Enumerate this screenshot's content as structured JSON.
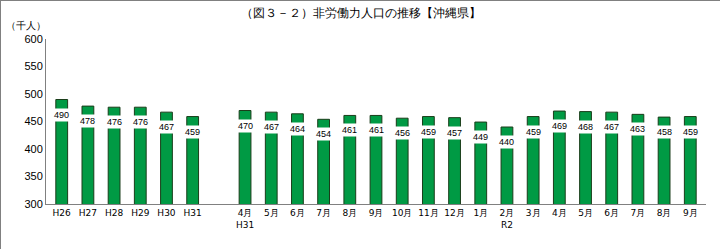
{
  "chart_data": {
    "type": "bar",
    "title": "（図３－２）非労働力人口の推移【沖縄県】",
    "y_label": "（千人）",
    "categories": [
      "H26",
      "H27",
      "H28",
      "H29",
      "H30",
      "H31",
      null,
      "4月\nH31",
      "5月",
      "6月",
      "7月",
      "8月",
      "9月",
      "10月",
      "11月",
      "12月",
      "1月",
      "2月\nR2",
      "3月",
      "4月",
      "5月",
      "6月",
      "7月",
      "8月",
      "9月"
    ],
    "values": [
      490,
      478,
      476,
      476,
      467,
      459,
      null,
      470,
      467,
      464,
      454,
      461,
      461,
      456,
      459,
      457,
      449,
      440,
      459,
      469,
      468,
      467,
      463,
      458,
      459
    ],
    "color": "#009a44",
    "ylim": [
      300,
      600
    ],
    "yticks": [
      300,
      350,
      400,
      450,
      500,
      550,
      600
    ],
    "grid": false,
    "data_labels": true
  }
}
